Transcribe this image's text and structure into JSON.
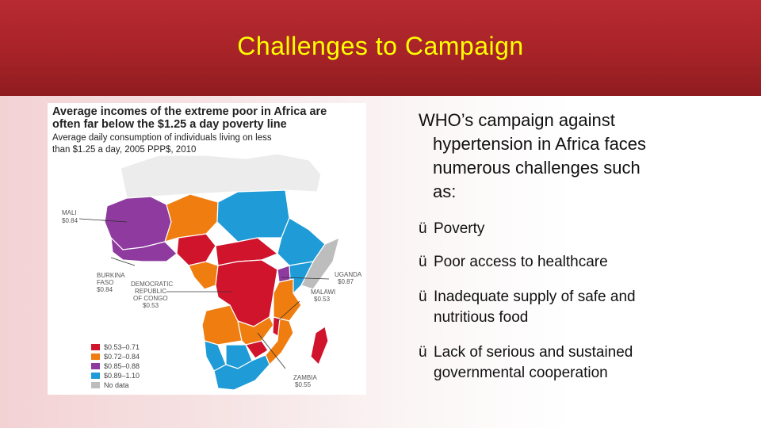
{
  "slide": {
    "title": "Challenges to Campaign",
    "colors": {
      "header": "#a72328",
      "title": "#ffff00"
    }
  },
  "map": {
    "title_line1": "Average incomes of the extreme poor in Africa are",
    "title_line2": "often far below the $1.25 a day poverty line",
    "subtitle_line1": "Average daily consumption of individuals living on less",
    "subtitle_line2": "than $1.25 a day, 2005 PPP$, 2010",
    "labels": {
      "mali_name": "MALI",
      "mali_value": "$0.84",
      "burkina_name1": "BURKINA",
      "burkina_name2": "FASO",
      "burkina_value": "$0.84",
      "drc_name1": "DEMOCRATIC",
      "drc_name2": "REPUBLIC",
      "drc_name3": "OF CONGO",
      "drc_value": "$0.53",
      "uganda_name": "UGANDA",
      "uganda_value": "$0.87",
      "malawi_name": "MALAWI",
      "malawi_value": "$0.53",
      "zambia_name": "ZAMBIA",
      "zambia_value": "$0.55"
    },
    "legend": [
      {
        "label": "$0.53–0.71",
        "color": "#d0142c"
      },
      {
        "label": "$0.72–0.84",
        "color": "#ef7d0f"
      },
      {
        "label": "$0.85–0.88",
        "color": "#8e3a9f"
      },
      {
        "label": "$0.89–1.10",
        "color": "#1f9bd7"
      },
      {
        "label": "No data",
        "color": "#bdbdbd"
      }
    ]
  },
  "content": {
    "intro_line1": "WHO’s campaign against",
    "intro_line2": "hypertension in Africa faces",
    "intro_line3": "numerous challenges such",
    "intro_line4": "as:",
    "check_mark": "ü",
    "bullets": [
      {
        "line1": "Poverty",
        "line2": ""
      },
      {
        "line1": "Poor access to healthcare",
        "line2": ""
      },
      {
        "line1": "Inadequate supply of safe and",
        "line2": "nutritious food"
      },
      {
        "line1": "Lack of serious and sustained",
        "line2": "governmental cooperation"
      }
    ]
  }
}
